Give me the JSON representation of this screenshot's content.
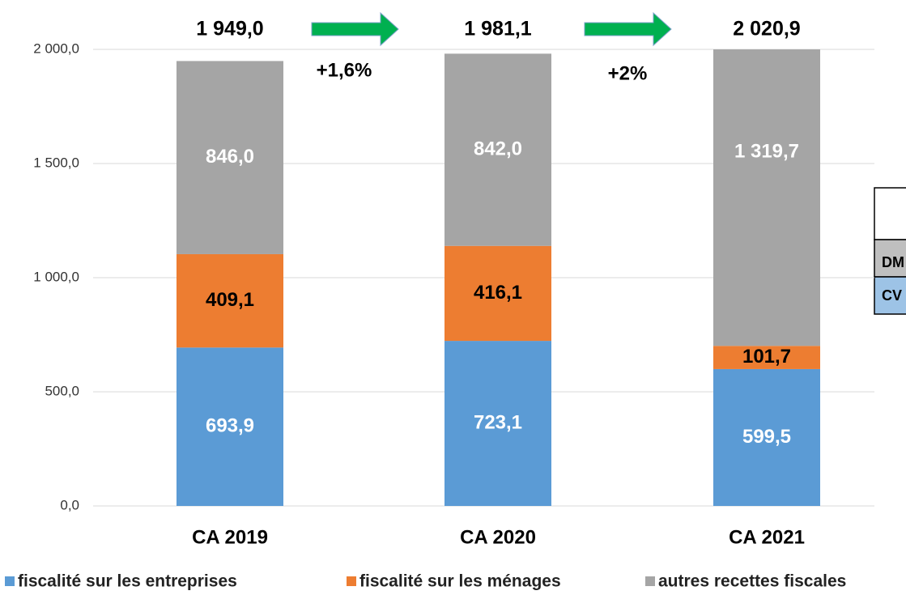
{
  "chart_data": {
    "type": "stacked_bar",
    "categories": [
      "CA 2019",
      "CA 2020",
      "CA 2021"
    ],
    "series": [
      {
        "name": "fiscalité sur les entreprises",
        "color": "#5b9bd5",
        "values": [
          693.9,
          723.1,
          599.5
        ],
        "value_labels": [
          "693,9",
          "723,1",
          "599,5"
        ],
        "label_color": "#ffffff"
      },
      {
        "name": "fiscalité sur les ménages",
        "color": "#ed7d31",
        "values": [
          409.1,
          416.1,
          101.7
        ],
        "value_labels": [
          "409,1",
          "416,1",
          "101,7"
        ],
        "label_color": "#000000"
      },
      {
        "name": "autres recettes fiscales",
        "color": "#a5a5a5",
        "values": [
          846.0,
          842.0,
          1319.7
        ],
        "value_labels": [
          "846,0",
          "842,0",
          "1 319,7"
        ],
        "label_color": "#ffffff"
      }
    ],
    "totals": [
      1949.0,
      1981.1,
      2020.9
    ],
    "total_labels": [
      "1 949,0",
      "1 981,1",
      "2 020,9"
    ],
    "annotations": [
      "+1,6%",
      "+2%"
    ],
    "ylim": [
      0,
      2000
    ],
    "yticks": [
      {
        "value": 0,
        "label": "0,0"
      },
      {
        "value": 500,
        "label": "500,0"
      },
      {
        "value": 1000,
        "label": "1 000,0"
      },
      {
        "value": 1500,
        "label": "1 500,0"
      },
      {
        "value": 2000,
        "label": "2 000,0"
      }
    ],
    "grid": true,
    "legend": "bottom"
  },
  "side_table": {
    "rows": [
      "DM",
      "CV"
    ]
  }
}
